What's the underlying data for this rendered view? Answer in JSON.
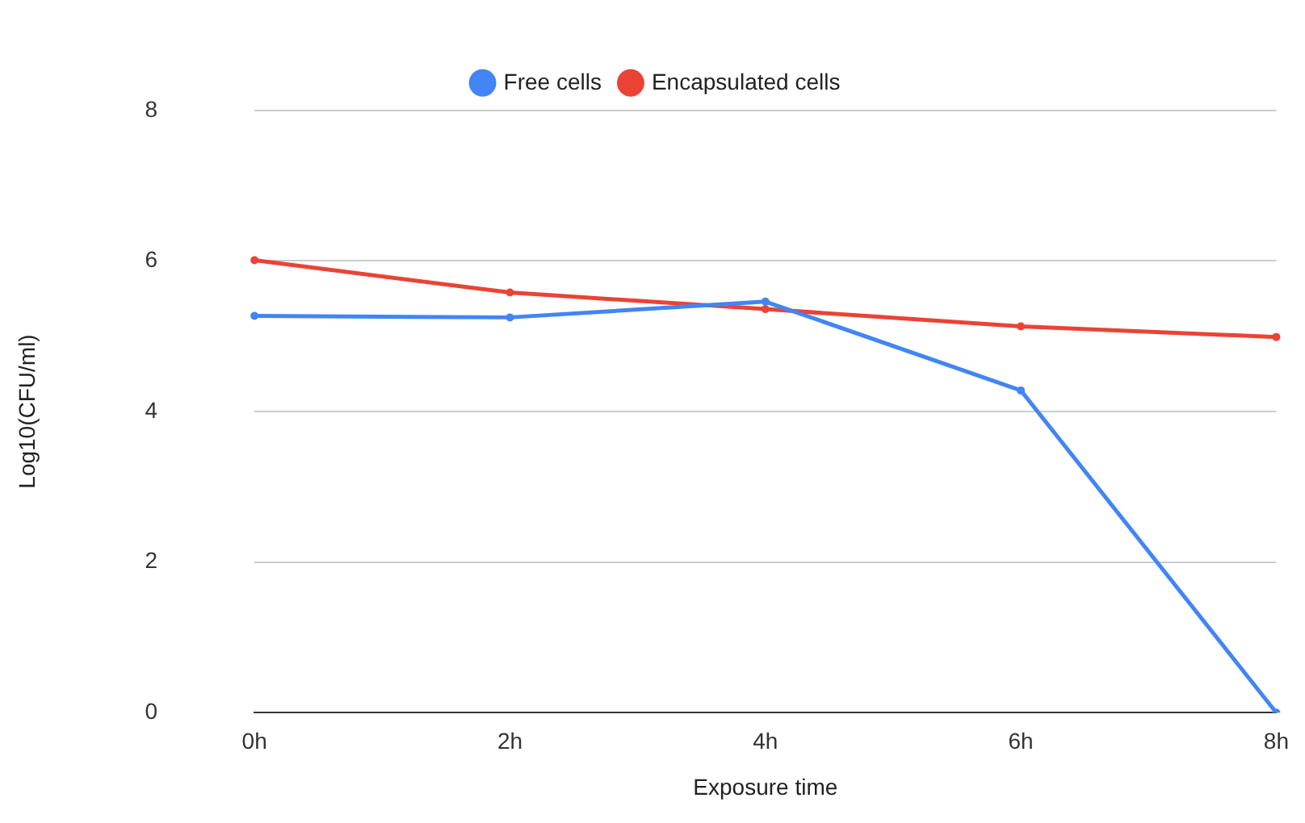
{
  "chart_data": {
    "type": "line",
    "xlabel": "Exposure time",
    "ylabel": "Log10(CFU/ml)",
    "categories": [
      "0h",
      "2h",
      "4h",
      "6h",
      "8h"
    ],
    "series": [
      {
        "name": "Free cells",
        "color": "#4285f4",
        "values": [
          5.27,
          5.25,
          5.46,
          4.28,
          0
        ]
      },
      {
        "name": "Encapsulated cells",
        "color": "#ea4335",
        "values": [
          6.01,
          5.58,
          5.36,
          5.13,
          4.99
        ]
      }
    ],
    "ylim": [
      0,
      8
    ],
    "yticks": [
      0,
      2,
      4,
      6,
      8
    ],
    "grid": "y",
    "legend": "top",
    "marker": "circle"
  }
}
